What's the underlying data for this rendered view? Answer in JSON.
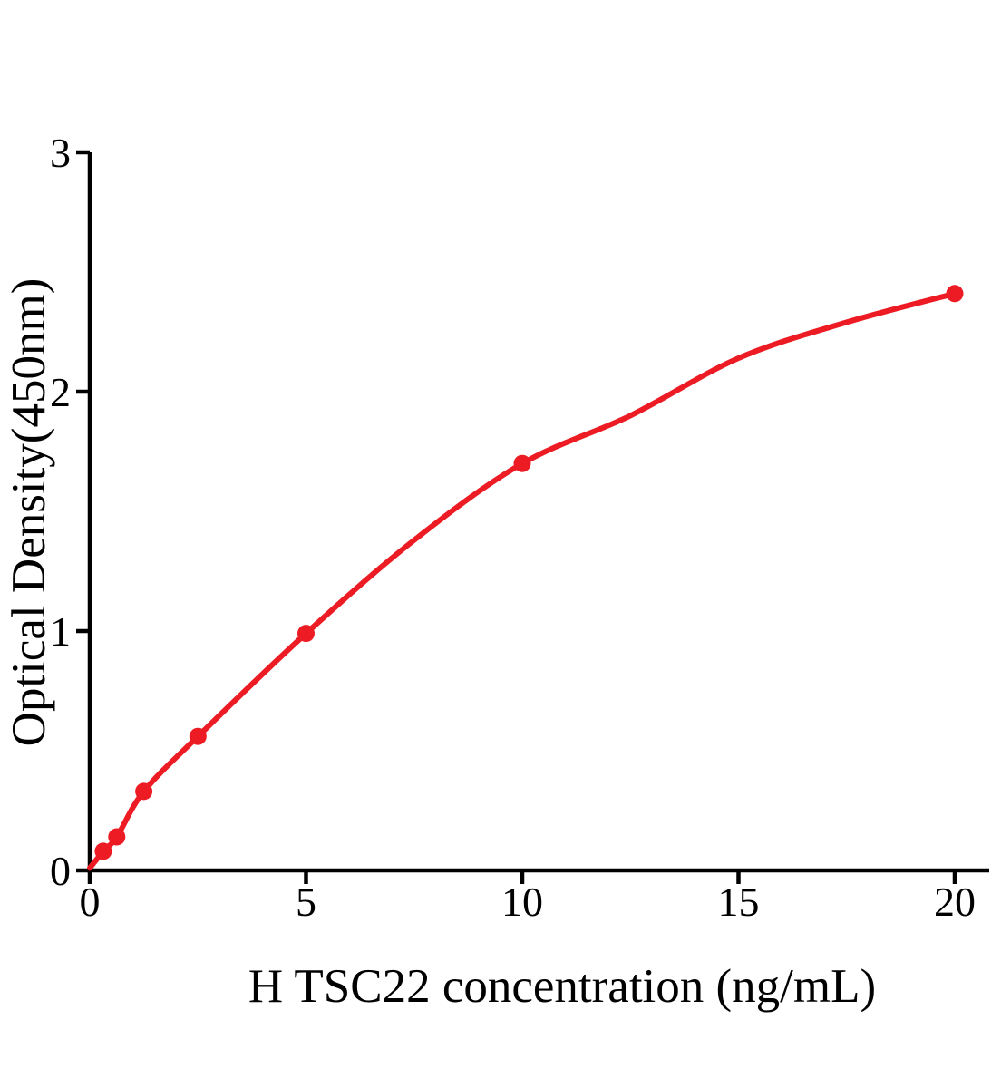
{
  "figure": {
    "background_color": "#ffffff"
  },
  "chart_data": {
    "type": "scatter",
    "title": "",
    "xlabel": "H TSC22 concentration (ng/mL)",
    "ylabel": "Optical Density(450nm)",
    "x": [
      0.313,
      0.625,
      1.25,
      2.5,
      5,
      10,
      20
    ],
    "y": [
      0.08,
      0.14,
      0.33,
      0.56,
      0.99,
      1.7,
      2.41
    ],
    "fit_curve": [
      [
        0,
        0.01
      ],
      [
        0.313,
        0.08
      ],
      [
        0.625,
        0.14
      ],
      [
        1.25,
        0.33
      ],
      [
        2.5,
        0.56
      ],
      [
        5,
        0.99
      ],
      [
        7.5,
        1.38
      ],
      [
        10,
        1.7
      ],
      [
        12.5,
        1.9
      ],
      [
        15,
        2.14
      ],
      [
        17.5,
        2.29
      ],
      [
        20,
        2.41
      ]
    ],
    "xticks": [
      0,
      5,
      10,
      15,
      20
    ],
    "yticks": [
      0,
      1,
      2,
      3
    ],
    "xlim": [
      0,
      20.8
    ],
    "ylim": [
      0,
      3
    ],
    "grid": false,
    "legend": null,
    "marker_color": "#ED1C24",
    "line_color": "#ED1C24",
    "axis_color": "#000000",
    "tick_label_color": "#000000"
  }
}
